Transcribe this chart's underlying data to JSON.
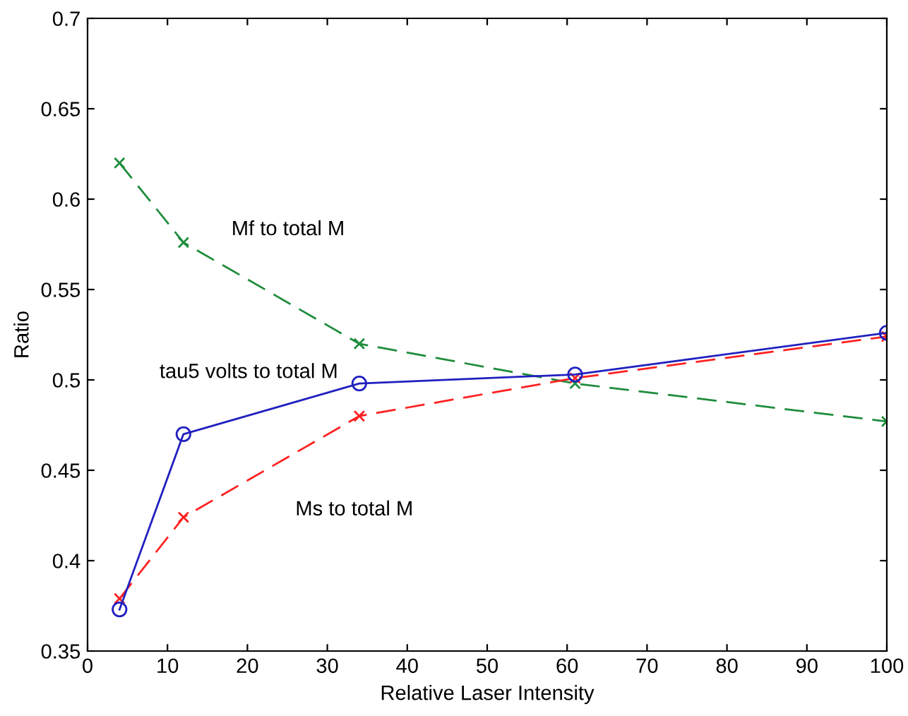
{
  "chart_data": {
    "type": "line",
    "xlabel": "Relative Laser Intensity",
    "ylabel": "Ratio",
    "x": [
      4,
      12,
      34,
      61,
      100
    ],
    "series": [
      {
        "name": "Mf to total M",
        "color": "#1e8c3c",
        "values": [
          0.62,
          0.576,
          0.52,
          0.498,
          0.477
        ],
        "marker": "cross",
        "line_style": "dashed"
      },
      {
        "name": "Ms to total M",
        "color": "#ff2020",
        "values": [
          0.379,
          0.424,
          0.48,
          0.501,
          0.524
        ],
        "marker": "cross",
        "line_style": "dashed"
      },
      {
        "name": "tau5 volts to total M",
        "color": "#2020c0",
        "values": [
          0.373,
          0.47,
          0.498,
          0.503,
          0.526
        ],
        "marker": "circle",
        "line_style": "solid"
      }
    ],
    "xlim": [
      0,
      100
    ],
    "xticks": [
      0,
      10,
      20,
      30,
      40,
      50,
      60,
      70,
      80,
      90,
      100
    ],
    "ylim": [
      0.35,
      0.7
    ],
    "yticks": [
      0.35,
      0.4,
      0.45,
      0.5,
      0.55,
      0.6,
      0.65,
      0.7
    ],
    "grid": false,
    "legend": false
  }
}
